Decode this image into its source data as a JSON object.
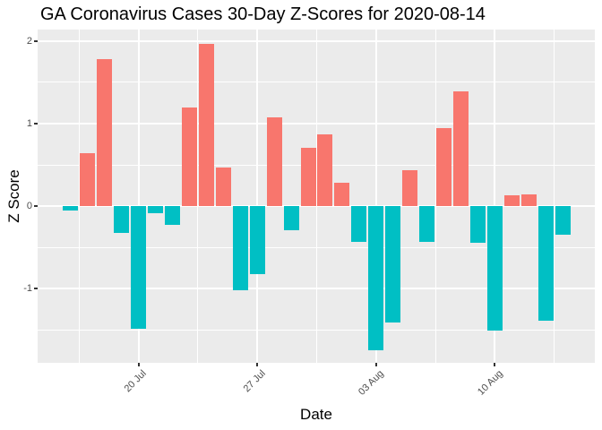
{
  "chart_data": {
    "type": "bar",
    "title": "GA Coronavirus Cases 30-Day Z-Scores for 2020-08-14",
    "xlabel": "Date",
    "ylabel": "Z Score",
    "dates": [
      "2020-07-16",
      "2020-07-17",
      "2020-07-18",
      "2020-07-19",
      "2020-07-20",
      "2020-07-21",
      "2020-07-22",
      "2020-07-23",
      "2020-07-24",
      "2020-07-25",
      "2020-07-26",
      "2020-07-27",
      "2020-07-28",
      "2020-07-29",
      "2020-07-30",
      "2020-07-31",
      "2020-08-01",
      "2020-08-02",
      "2020-08-03",
      "2020-08-04",
      "2020-08-05",
      "2020-08-06",
      "2020-08-07",
      "2020-08-08",
      "2020-08-09",
      "2020-08-10",
      "2020-08-11",
      "2020-08-12",
      "2020-08-13",
      "2020-08-14"
    ],
    "values": [
      -0.05,
      0.64,
      1.78,
      -0.32,
      -1.49,
      -0.09,
      -0.23,
      1.2,
      1.97,
      0.47,
      -1.02,
      -0.83,
      1.08,
      -0.29,
      0.71,
      0.87,
      0.28,
      -0.43,
      -1.75,
      -1.41,
      0.43,
      -0.43,
      0.94,
      1.39,
      -0.44,
      -1.51,
      0.13,
      0.14,
      -1.39,
      -0.35
    ],
    "x_ticks": [
      {
        "label": "20 Jul",
        "index": 4
      },
      {
        "label": "27 Jul",
        "index": 11
      },
      {
        "label": "03 Aug",
        "index": 18
      },
      {
        "label": "10 Aug",
        "index": 25
      }
    ],
    "x_minor_indices": [
      0.5,
      7.5,
      14.5,
      21.5,
      28.5
    ],
    "y_ticks": [
      2,
      1,
      0,
      -1
    ],
    "y_minor_ticks": [
      1.5,
      0.5,
      -0.5,
      -1.5
    ],
    "ylim": [
      -1.9,
      2.14
    ],
    "xlim_indices": [
      -1.95,
      30.9
    ],
    "grid": true,
    "legend": "none",
    "colors": {
      "positive": "#F8766D",
      "negative": "#00BFC4",
      "panel_bg": "#EBEBEB",
      "gridline": "#FFFFFF",
      "tick_mark": "#333333",
      "tick_label": "#4D4D4D",
      "title": "#000000",
      "axis_title": "#000000"
    }
  }
}
